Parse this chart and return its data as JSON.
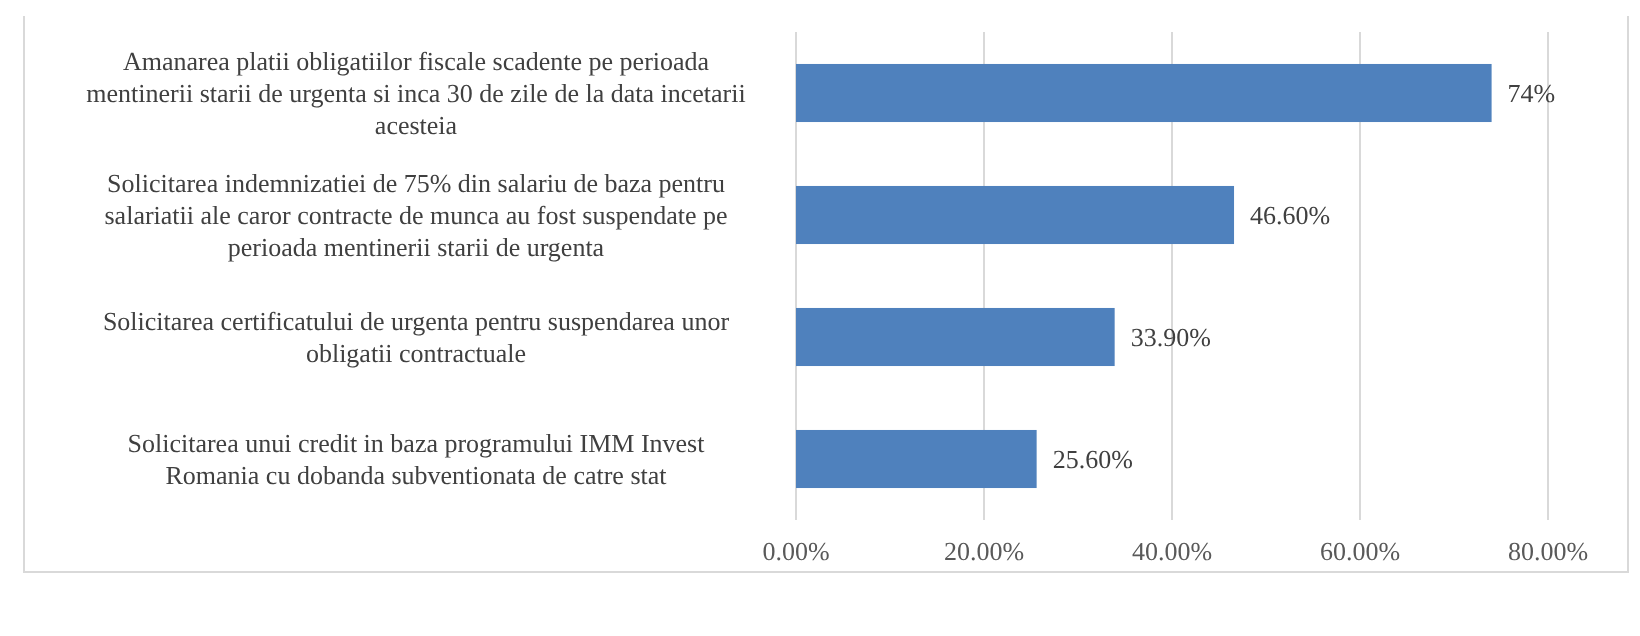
{
  "chart_data": {
    "type": "bar",
    "orientation": "horizontal",
    "categories": [
      "Amanarea platii obligatiilor fiscale scadente pe perioada mentinerii starii de urgenta si inca 30 de zile de la data incetarii acesteia",
      "Solicitarea indemnizatiei de 75% din salariu de baza pentru salariatii ale caror contracte de munca au fost suspendate pe perioada mentinerii starii de urgenta",
      "Solicitarea certificatului de urgenta pentru suspendarea unor obligatii contractuale",
      "Solicitarea unui credit in baza programului IMM Invest Romania cu dobanda subventionata de catre stat"
    ],
    "values": [
      74,
      46.6,
      33.9,
      25.6
    ],
    "value_labels": [
      "74%",
      "46.60%",
      "33.90%",
      "25.60%"
    ],
    "color": "#4f81bd",
    "xlim": [
      0,
      80
    ],
    "xticks": [
      {
        "value": 0,
        "label": "0.00%"
      },
      {
        "value": 20,
        "label": "20.00%"
      },
      {
        "value": 40,
        "label": "40.00%"
      },
      {
        "value": 60,
        "label": "60.00%"
      },
      {
        "value": 80,
        "label": "80.00%"
      }
    ],
    "grid": "x"
  }
}
